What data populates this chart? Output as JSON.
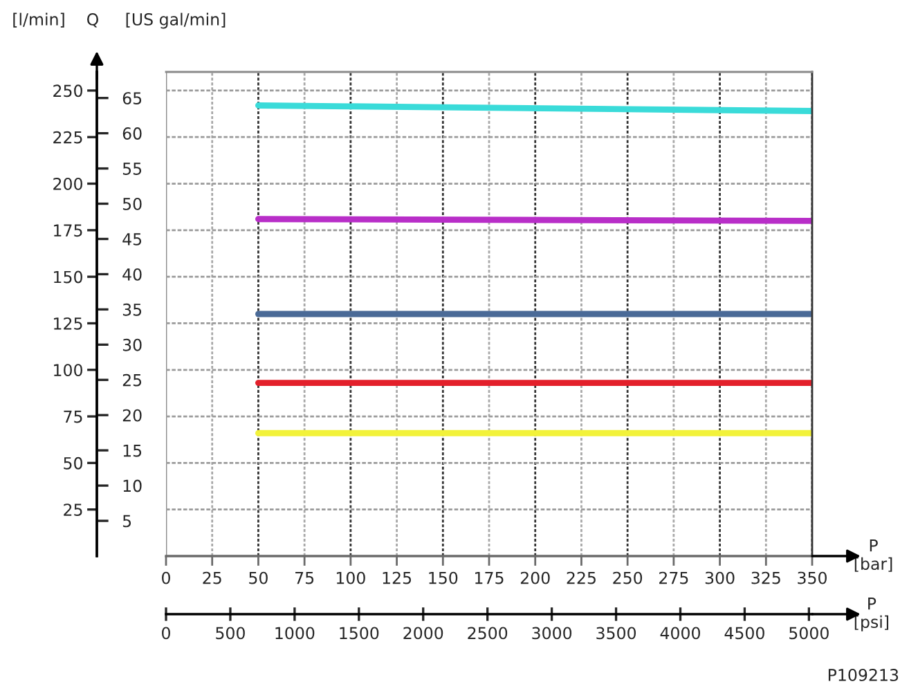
{
  "chart_data": {
    "type": "line",
    "xlabel": "P\n[bar]",
    "x2label": "P\n[psi]",
    "ylabel": "[l/min]",
    "y2label": "[US gal/min]",
    "annotations": [
      "Q",
      "P109213"
    ],
    "xlim": [
      0,
      350
    ],
    "xticks": [
      0,
      25,
      50,
      75,
      100,
      125,
      150,
      175,
      200,
      225,
      250,
      275,
      300,
      325,
      350
    ],
    "x2lim": [
      0,
      5025
    ],
    "x2ticks": [
      0,
      500,
      1000,
      1500,
      2000,
      2500,
      3000,
      3500,
      4000,
      4500,
      5000
    ],
    "ylim": [
      0,
      260
    ],
    "yticks": [
      25,
      50,
      75,
      100,
      125,
      150,
      175,
      200,
      225,
      250
    ],
    "y2lim": [
      0,
      68.7
    ],
    "y2ticks": [
      5,
      10,
      15,
      20,
      25,
      30,
      35,
      40,
      45,
      50,
      55,
      60,
      65
    ],
    "grid": true,
    "series": [
      {
        "color": "#3adbd9",
        "x": [
          50,
          150,
          250,
          350
        ],
        "values": [
          242,
          241,
          240,
          239
        ]
      },
      {
        "color": "#b82ec8",
        "x": [
          50,
          350
        ],
        "values": [
          181,
          180
        ]
      },
      {
        "color": "#4a6a97",
        "x": [
          50,
          350
        ],
        "values": [
          130,
          130
        ]
      },
      {
        "color": "#e3202b",
        "x": [
          50,
          350
        ],
        "values": [
          93,
          93
        ]
      },
      {
        "color": "#f2f23a",
        "x": [
          50,
          350
        ],
        "values": [
          66,
          66
        ]
      }
    ]
  }
}
